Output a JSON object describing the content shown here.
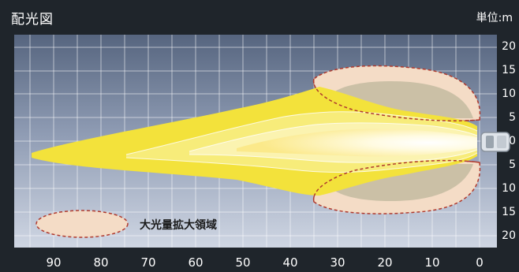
{
  "header": {
    "title": "配光図",
    "unit": "単位:m"
  },
  "axes": {
    "y_ticks_right": [
      "20",
      "15",
      "10",
      "5",
      "0",
      "5",
      "10",
      "15",
      "20"
    ],
    "x_ticks": [
      "90",
      "80",
      "70",
      "60",
      "50",
      "40",
      "30",
      "20",
      "10",
      "0"
    ]
  },
  "legend": {
    "label": "大光量拡大領域"
  },
  "colors": {
    "panel_top": "#5d6c85",
    "panel_bottom": "#c9d0df",
    "beam_outer": "#f2e23a",
    "beam_core": "#fffdf0",
    "expanded_region": "#f6dcc4",
    "region_border": "#b03a2e"
  }
}
